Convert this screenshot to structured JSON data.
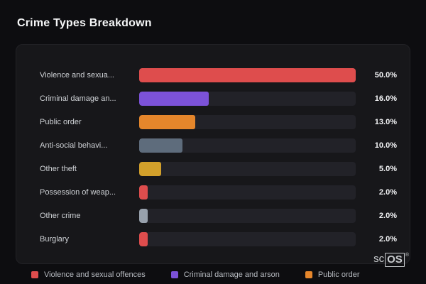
{
  "header": {
    "title": "Crime Types Breakdown"
  },
  "chart_data": {
    "type": "bar",
    "orientation": "horizontal",
    "title": "Crime Types Breakdown",
    "categories": [
      "Violence and sexua...",
      "Criminal damage an...",
      "Public order",
      "Anti-social behavi...",
      "Other theft",
      "Possession of weap...",
      "Other crime",
      "Burglary"
    ],
    "values": [
      50.0,
      16.0,
      13.0,
      10.0,
      5.0,
      2.0,
      2.0,
      2.0
    ],
    "value_labels": [
      "50.0%",
      "16.0%",
      "13.0%",
      "10.0%",
      "5.0%",
      "2.0%",
      "2.0%",
      "2.0%"
    ],
    "bar_colors": [
      "#de4d4d",
      "#7c52d8",
      "#e5862b",
      "#5e6c7c",
      "#d2a02b",
      "#de4d4d",
      "#98a1ac",
      "#de4d4d"
    ],
    "xlim": [
      0,
      50
    ],
    "grid": false,
    "legend_position": "bottom",
    "track_color": "#222228"
  },
  "legend": {
    "items": [
      {
        "label": "Violence and sexual offences",
        "color": "#de4d4d"
      },
      {
        "label": "Criminal damage and arson",
        "color": "#7c52d8"
      },
      {
        "label": "Public order",
        "color": "#e5862b"
      }
    ]
  },
  "branding": {
    "prefix": "sc",
    "boxed": "OS",
    "registered": "®"
  }
}
